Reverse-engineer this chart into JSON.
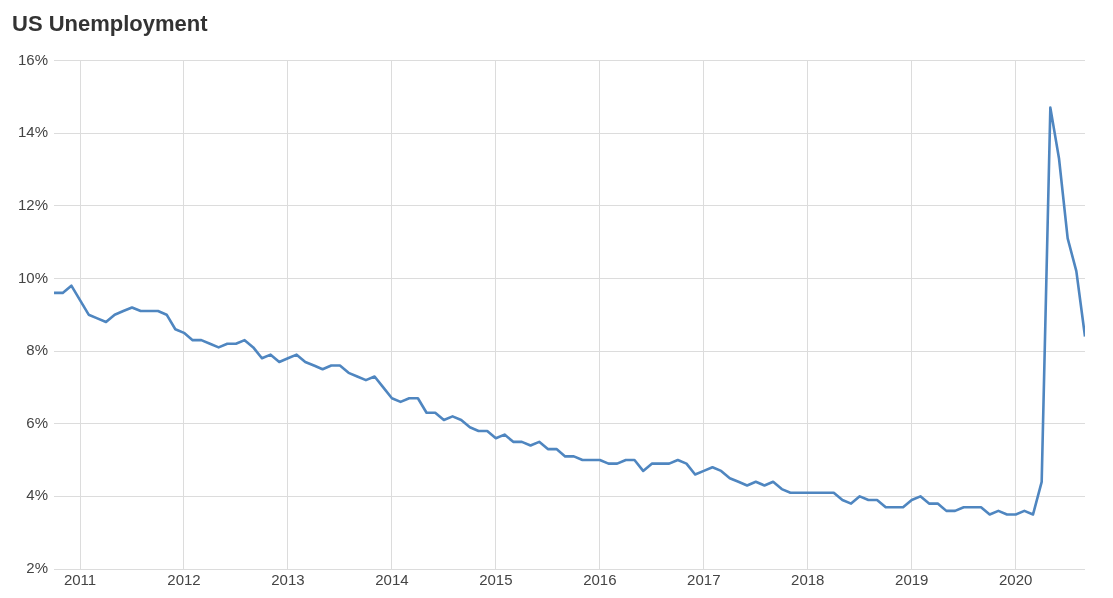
{
  "chart_data": {
    "type": "line",
    "title": "US Unemployment",
    "x": [
      "2010-10",
      "2010-11",
      "2010-12",
      "2011-01",
      "2011-02",
      "2011-03",
      "2011-04",
      "2011-05",
      "2011-06",
      "2011-07",
      "2011-08",
      "2011-09",
      "2011-10",
      "2011-11",
      "2011-12",
      "2012-01",
      "2012-02",
      "2012-03",
      "2012-04",
      "2012-05",
      "2012-06",
      "2012-07",
      "2012-08",
      "2012-09",
      "2012-10",
      "2012-11",
      "2012-12",
      "2013-01",
      "2013-02",
      "2013-03",
      "2013-04",
      "2013-05",
      "2013-06",
      "2013-07",
      "2013-08",
      "2013-09",
      "2013-10",
      "2013-11",
      "2013-12",
      "2014-01",
      "2014-02",
      "2014-03",
      "2014-04",
      "2014-05",
      "2014-06",
      "2014-07",
      "2014-08",
      "2014-09",
      "2014-10",
      "2014-11",
      "2014-12",
      "2015-01",
      "2015-02",
      "2015-03",
      "2015-04",
      "2015-05",
      "2015-06",
      "2015-07",
      "2015-08",
      "2015-09",
      "2015-10",
      "2015-11",
      "2015-12",
      "2016-01",
      "2016-02",
      "2016-03",
      "2016-04",
      "2016-05",
      "2016-06",
      "2016-07",
      "2016-08",
      "2016-09",
      "2016-10",
      "2016-11",
      "2016-12",
      "2017-01",
      "2017-02",
      "2017-03",
      "2017-04",
      "2017-05",
      "2017-06",
      "2017-07",
      "2017-08",
      "2017-09",
      "2017-10",
      "2017-11",
      "2017-12",
      "2018-01",
      "2018-02",
      "2018-03",
      "2018-04",
      "2018-05",
      "2018-06",
      "2018-07",
      "2018-08",
      "2018-09",
      "2018-10",
      "2018-11",
      "2018-12",
      "2019-01",
      "2019-02",
      "2019-03",
      "2019-04",
      "2019-05",
      "2019-06",
      "2019-07",
      "2019-08",
      "2019-09",
      "2019-10",
      "2019-11",
      "2019-12",
      "2020-01",
      "2020-02",
      "2020-03",
      "2020-04",
      "2020-05",
      "2020-06",
      "2020-07",
      "2020-08",
      "2020-09"
    ],
    "series": [
      {
        "color": "#4f86c0",
        "values": [
          9.6,
          9.6,
          9.8,
          9.4,
          9.0,
          8.9,
          8.8,
          9.0,
          9.1,
          9.2,
          9.1,
          9.1,
          9.1,
          9.0,
          8.6,
          8.5,
          8.3,
          8.3,
          8.2,
          8.1,
          8.2,
          8.2,
          8.3,
          8.1,
          7.8,
          7.9,
          7.7,
          7.8,
          7.9,
          7.7,
          7.6,
          7.5,
          7.6,
          7.6,
          7.4,
          7.3,
          7.2,
          7.3,
          7.0,
          6.7,
          6.6,
          6.7,
          6.7,
          6.3,
          6.3,
          6.1,
          6.2,
          6.1,
          5.9,
          5.8,
          5.8,
          5.6,
          5.7,
          5.5,
          5.5,
          5.4,
          5.5,
          5.3,
          5.3,
          5.1,
          5.1,
          5.0,
          5.0,
          5.0,
          4.9,
          4.9,
          5.0,
          5.0,
          4.7,
          4.9,
          4.9,
          4.9,
          5.0,
          4.9,
          4.6,
          4.7,
          4.8,
          4.7,
          4.5,
          4.4,
          4.3,
          4.4,
          4.3,
          4.4,
          4.2,
          4.1,
          4.1,
          4.1,
          4.1,
          4.1,
          4.1,
          3.9,
          3.8,
          4.0,
          3.9,
          3.9,
          3.7,
          3.7,
          3.7,
          3.9,
          4.0,
          3.8,
          3.8,
          3.6,
          3.6,
          3.7,
          3.7,
          3.7,
          3.5,
          3.6,
          3.5,
          3.5,
          3.6,
          3.5,
          4.4,
          14.7,
          13.3,
          11.1,
          10.2,
          8.4
        ]
      }
    ],
    "xlim": [
      "2010-10",
      "2020-09"
    ],
    "xticks": [
      "2011",
      "2012",
      "2013",
      "2014",
      "2015",
      "2016",
      "2017",
      "2018",
      "2019",
      "2020"
    ],
    "ylim": [
      2,
      16
    ],
    "yticks": [
      {
        "value": 2,
        "label": "2%"
      },
      {
        "value": 4,
        "label": "4%"
      },
      {
        "value": 6,
        "label": "6%"
      },
      {
        "value": 8,
        "label": "8%"
      },
      {
        "value": 10,
        "label": "10%"
      },
      {
        "value": 12,
        "label": "12%"
      },
      {
        "value": 14,
        "label": "14%"
      },
      {
        "value": 16,
        "label": "16%"
      }
    ],
    "grid": true,
    "legend": false,
    "marker": "none",
    "line_style": "solid"
  }
}
